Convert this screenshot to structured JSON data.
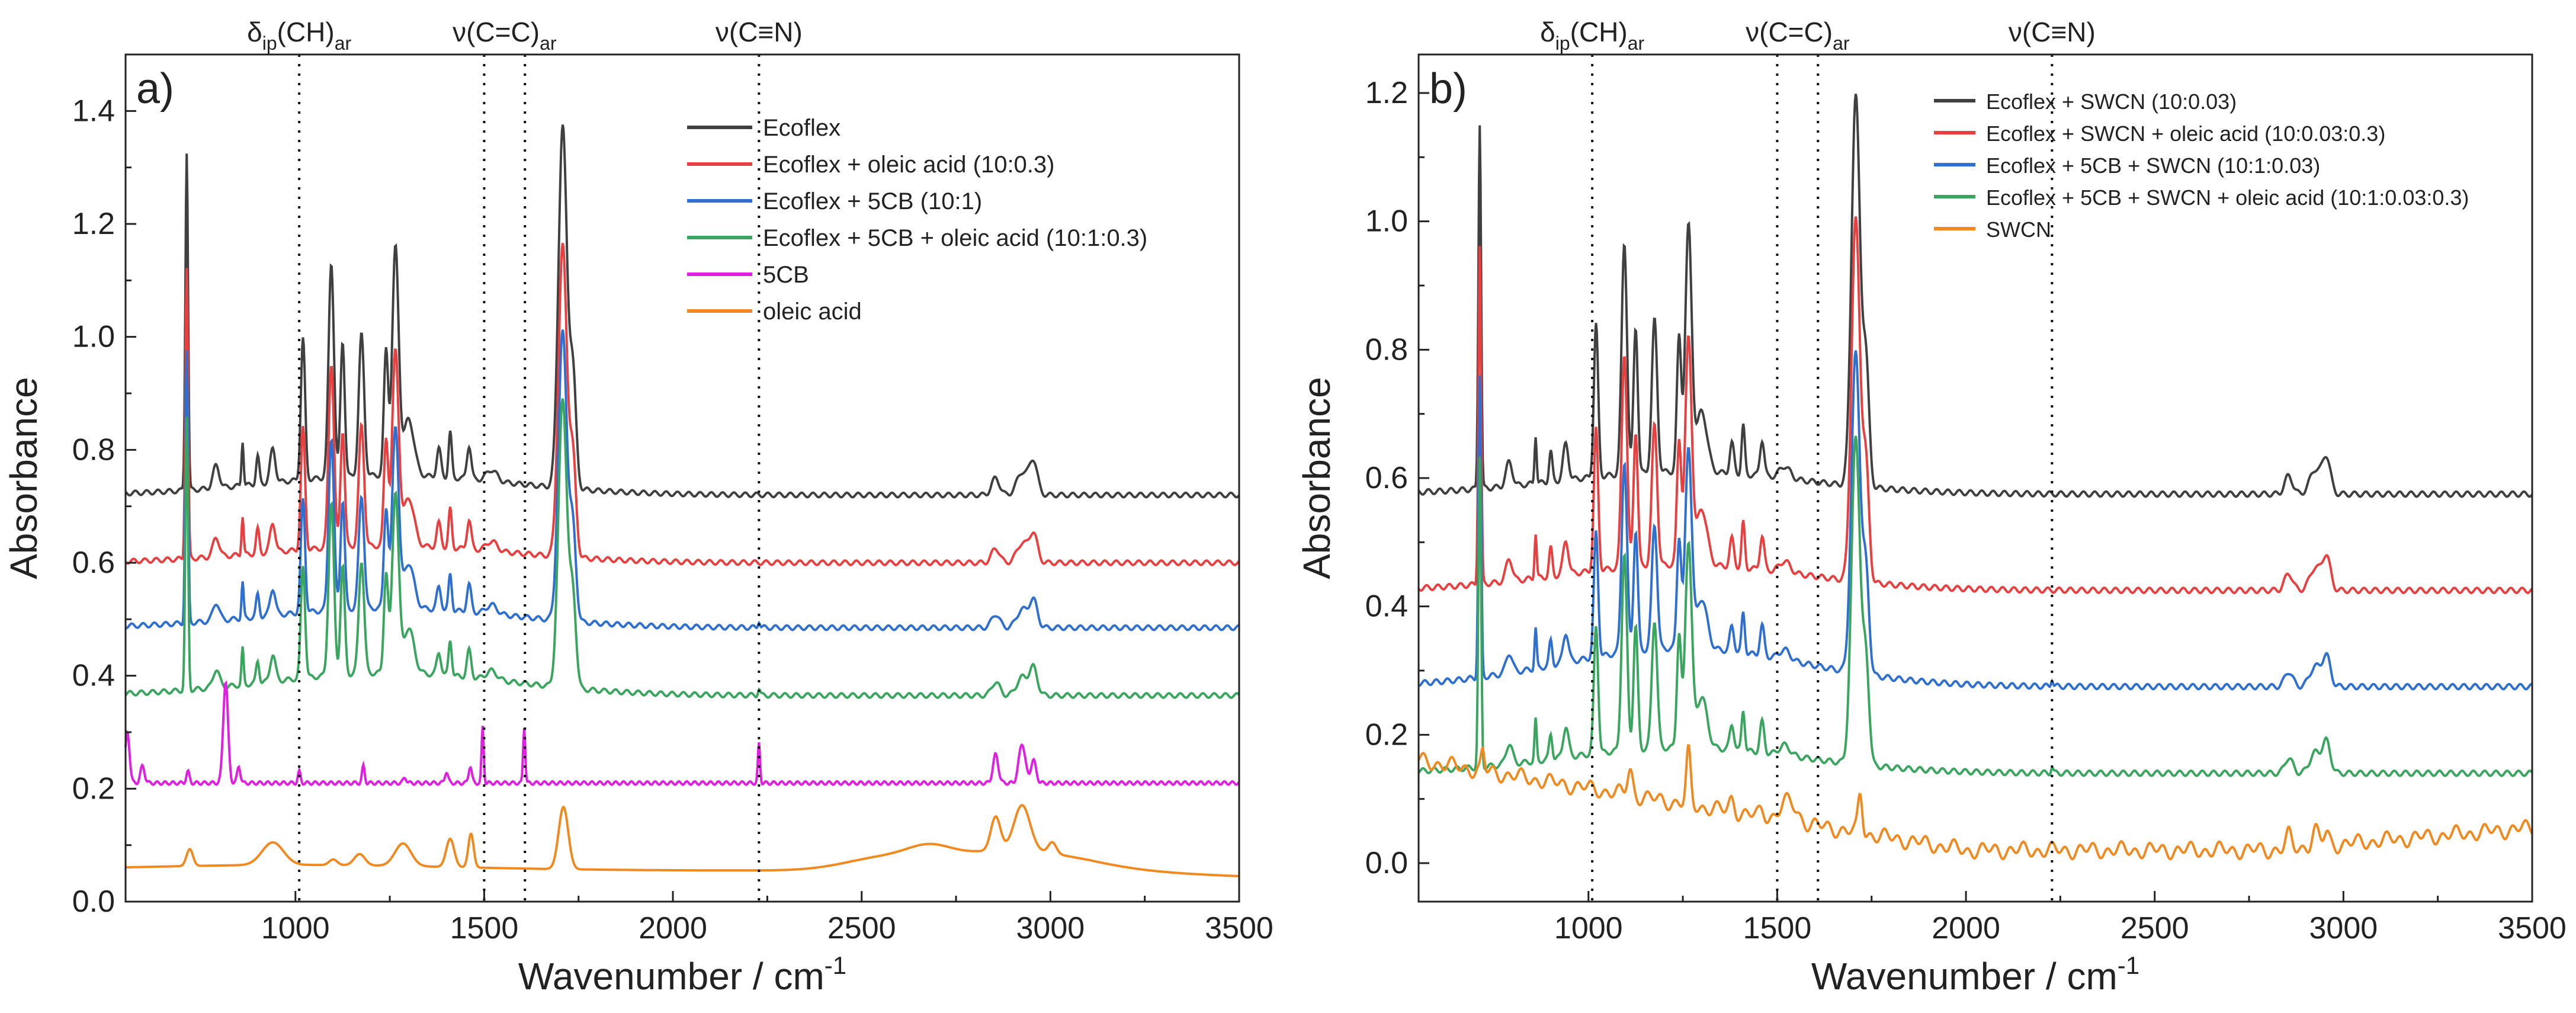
{
  "chart_data": [
    {
      "type": "line",
      "panel": "a)",
      "xlabel": "Wavenumber / cm",
      "xlabel_sup": "-1",
      "ylabel": "Absorbance",
      "xlim": [
        550,
        3500
      ],
      "ylim": [
        0.0,
        1.5
      ],
      "xticks": [
        "1000",
        "1500",
        "2000",
        "2500",
        "3000",
        "3500"
      ],
      "xtick_values": [
        1000,
        1500,
        2000,
        2500,
        3000,
        3500
      ],
      "yticks": [
        "0.0",
        "0.2",
        "0.4",
        "0.6",
        "0.8",
        "1.0",
        "1.2",
        "1.4"
      ],
      "ytick_values": [
        0.0,
        0.2,
        0.4,
        0.6,
        0.8,
        1.0,
        1.2,
        1.4
      ],
      "band_markers": [
        1010,
        1500,
        1608,
        2228
      ],
      "band_labels": [
        {
          "main": "δ",
          "sub1": "ip",
          "mid": "(CH)",
          "sub2": "ar",
          "x": 1010
        },
        {
          "main": "ν(C=C)",
          "sub1": "",
          "mid": "",
          "sub2": "ar",
          "x": 1554
        },
        {
          "main": "ν(C≡N)",
          "sub1": "",
          "mid": "",
          "sub2": "",
          "x": 2228
        }
      ],
      "legend_position": "top-right",
      "series": [
        {
          "name": "Ecoflex",
          "color": "#404040",
          "baseline": 0.72,
          "offset": 0.035,
          "scale": 1.0,
          "cn": 0.0
        },
        {
          "name": "Ecoflex + oleic acid (10:0.3)",
          "color": "#e84040",
          "baseline": 0.6,
          "offset": 0.03,
          "scale": 0.86,
          "cn": 0.0
        },
        {
          "name": "Ecoflex + 5CB (10:1)",
          "color": "#2f6fd0",
          "baseline": 0.485,
          "offset": 0.035,
          "scale": 0.8,
          "cn": 0.012
        },
        {
          "name": "Ecoflex + 5CB + oleic acid (10:1:0.3)",
          "color": "#3aa55f",
          "baseline": 0.365,
          "offset": 0.04,
          "scale": 0.8,
          "cn": 0.012
        },
        {
          "name": "5CB",
          "color": "#e020e0",
          "baseline": 0.21,
          "offset": 0.0,
          "scale": 0.0,
          "cn": 0.07
        },
        {
          "name": "oleic acid",
          "color": "#f08a20",
          "baseline": 0.055,
          "offset": 0.0,
          "scale": 0.0,
          "cn": 0.0
        }
      ]
    },
    {
      "type": "line",
      "panel": "b)",
      "xlabel": "Wavenumber / cm",
      "xlabel_sup": "-1",
      "ylabel": "Absorbance",
      "xlim": [
        550,
        3500
      ],
      "ylim": [
        -0.06,
        1.26
      ],
      "xticks": [
        "1000",
        "1500",
        "2000",
        "2500",
        "3000",
        "3500"
      ],
      "xtick_values": [
        1000,
        1500,
        2000,
        2500,
        3000,
        3500
      ],
      "yticks": [
        "0.0",
        "0.2",
        "0.4",
        "0.6",
        "0.8",
        "1.0",
        "1.2"
      ],
      "ytick_values": [
        0.0,
        0.2,
        0.4,
        0.6,
        0.8,
        1.0,
        1.2
      ],
      "band_markers": [
        1010,
        1500,
        1608,
        2228
      ],
      "band_labels": [
        {
          "main": "δ",
          "sub1": "ip",
          "mid": "(CH)",
          "sub2": "ar",
          "x": 1010
        },
        {
          "main": "ν(C=C)",
          "sub1": "",
          "mid": "",
          "sub2": "ar",
          "x": 1554
        },
        {
          "main": "ν(C≡N)",
          "sub1": "",
          "mid": "",
          "sub2": "",
          "x": 2228
        }
      ],
      "legend_position": "top-right",
      "series": [
        {
          "name": "Ecoflex + SWCN (10:0.03)",
          "color": "#404040",
          "baseline": 0.575,
          "offset": 0.035,
          "scale": 0.95,
          "cn": 0.0
        },
        {
          "name": "Ecoflex + SWCN + oleic acid (10:0.03:0.3)",
          "color": "#e84040",
          "baseline": 0.425,
          "offset": 0.04,
          "scale": 0.88,
          "cn": 0.0
        },
        {
          "name": "Ecoflex + 5CB + SWCN (10:1:0.03)",
          "color": "#2f6fd0",
          "baseline": 0.275,
          "offset": 0.06,
          "scale": 0.78,
          "cn": 0.012
        },
        {
          "name": "Ecoflex + 5CB + SWCN + oleic acid (10:1:0.03:0.3)",
          "color": "#3aa55f",
          "baseline": 0.14,
          "offset": 0.04,
          "scale": 0.8,
          "cn": 0.01
        },
        {
          "name": "SWCN",
          "color": "#f08a20",
          "baseline": 0.0,
          "offset": 0.0,
          "scale": 0.0,
          "cn": 0.0
        }
      ]
    }
  ]
}
